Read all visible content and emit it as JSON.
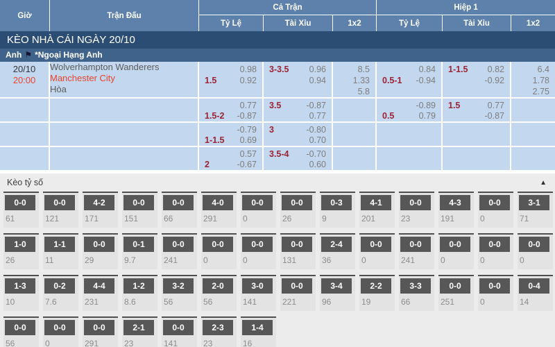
{
  "colors": {
    "header_blue": "#5d81ab",
    "title_bar_navy": "#2b4d73",
    "league_bar_blue": "#40638c",
    "row_light_blue": "#c3d7ef",
    "accent_red": "#e8432d",
    "handicap_maroon": "#9b2335",
    "value_gray": "#7d7d7d",
    "score_box_gray": "#575757"
  },
  "table_header": {
    "time": "Giờ",
    "match": "Trận Đấu",
    "full_time": "Cả Trận",
    "first_half": "Hiệp 1",
    "handicap": "Tỷ Lệ",
    "over_under": "Tài Xỉu",
    "one_x_two": "1x2"
  },
  "title_bar": "KÈO NHÀ CÁI NGÀY 20/10",
  "league_bar": {
    "country": "Anh",
    "flag_icon": "⚑",
    "league": "*Ngoại Hạng Anh"
  },
  "match": {
    "date": "20/10",
    "time": "20:00",
    "home_team": "Wolverhampton Wanderers",
    "away_team": "Manchester City",
    "draw_label": "Hòa"
  },
  "odds_rows": [
    {
      "ft_hdp": {
        "label": "1.5",
        "top": "0.98",
        "bottom": "0.92"
      },
      "ft_ou": {
        "label": "3-3.5",
        "top": "0.96",
        "bottom": "0.94"
      },
      "ft_1x2": [
        "8.5",
        "1.33",
        "5.8"
      ],
      "h1_hdp": {
        "label": "0.5-1",
        "top": "0.84",
        "bottom": "-0.94"
      },
      "h1_ou": {
        "label": "1-1.5",
        "top": "0.82",
        "bottom": "-0.92"
      },
      "h1_1x2": [
        "6.4",
        "1.78",
        "2.75"
      ]
    },
    {
      "ft_hdp": {
        "label": "1.5-2",
        "top": "0.77",
        "bottom": "-0.87"
      },
      "ft_ou": {
        "label": "3.5",
        "top": "-0.87",
        "bottom": "0.77"
      },
      "ft_1x2": [],
      "h1_hdp": {
        "label": "0.5",
        "top": "-0.89",
        "bottom": "0.79"
      },
      "h1_ou": {
        "label": "1.5",
        "top": "0.77",
        "bottom": "-0.87"
      },
      "h1_1x2": []
    },
    {
      "ft_hdp": {
        "label": "1-1.5",
        "top": "-0.79",
        "bottom": "0.69"
      },
      "ft_ou": {
        "label": "3",
        "top": "-0.80",
        "bottom": "0.70"
      },
      "ft_1x2": [],
      "h1_hdp": null,
      "h1_ou": null,
      "h1_1x2": []
    },
    {
      "ft_hdp": {
        "label": "2",
        "top": "0.57",
        "bottom": "-0.67"
      },
      "ft_ou": {
        "label": "3.5-4",
        "top": "-0.70",
        "bottom": "0.60"
      },
      "ft_1x2": [],
      "h1_hdp": null,
      "h1_ou": null,
      "h1_1x2": []
    }
  ],
  "score_section": {
    "title": "Kèo tỷ số",
    "collapse_icon": "▲",
    "rows": [
      [
        {
          "score": "0-0",
          "value": "61"
        },
        {
          "score": "0-0",
          "value": "121"
        },
        {
          "score": "4-2",
          "value": "171"
        },
        {
          "score": "0-0",
          "value": "151"
        },
        {
          "score": "0-0",
          "value": "66"
        },
        {
          "score": "4-0",
          "value": "291"
        },
        {
          "score": "0-0",
          "value": "0"
        },
        {
          "score": "0-0",
          "value": "26"
        },
        {
          "score": "0-3",
          "value": "9"
        },
        {
          "score": "4-1",
          "value": "201"
        },
        {
          "score": "0-0",
          "value": "23"
        },
        {
          "score": "4-3",
          "value": "191"
        },
        {
          "score": "0-0",
          "value": "0"
        },
        {
          "score": "3-1",
          "value": "71"
        }
      ],
      [
        {
          "score": "1-0",
          "value": "26"
        },
        {
          "score": "1-1",
          "value": "11"
        },
        {
          "score": "0-0",
          "value": "29"
        },
        {
          "score": "0-1",
          "value": "9.7"
        },
        {
          "score": "0-0",
          "value": "241"
        },
        {
          "score": "0-0",
          "value": "0"
        },
        {
          "score": "0-0",
          "value": "0"
        },
        {
          "score": "0-0",
          "value": "131"
        },
        {
          "score": "2-4",
          "value": "36"
        },
        {
          "score": "0-0",
          "value": "0"
        },
        {
          "score": "0-0",
          "value": "241"
        },
        {
          "score": "0-0",
          "value": "0"
        },
        {
          "score": "0-0",
          "value": "0"
        },
        {
          "score": "0-0",
          "value": "0"
        }
      ],
      [
        {
          "score": "1-3",
          "value": "10"
        },
        {
          "score": "0-2",
          "value": "7.6"
        },
        {
          "score": "4-4",
          "value": "231"
        },
        {
          "score": "1-2",
          "value": "8.6"
        },
        {
          "score": "3-2",
          "value": "56"
        },
        {
          "score": "2-0",
          "value": "56"
        },
        {
          "score": "3-0",
          "value": "141"
        },
        {
          "score": "0-0",
          "value": "221"
        },
        {
          "score": "3-4",
          "value": "96"
        },
        {
          "score": "2-2",
          "value": "19"
        },
        {
          "score": "3-3",
          "value": "66"
        },
        {
          "score": "0-0",
          "value": "251"
        },
        {
          "score": "0-0",
          "value": "0"
        },
        {
          "score": "0-4",
          "value": "14"
        }
      ],
      [
        {
          "score": "0-0",
          "value": "56"
        },
        {
          "score": "0-0",
          "value": "0"
        },
        {
          "score": "0-0",
          "value": "291"
        },
        {
          "score": "2-1",
          "value": "23"
        },
        {
          "score": "0-0",
          "value": "141"
        },
        {
          "score": "2-3",
          "value": "23"
        },
        {
          "score": "1-4",
          "value": "16"
        }
      ]
    ]
  }
}
